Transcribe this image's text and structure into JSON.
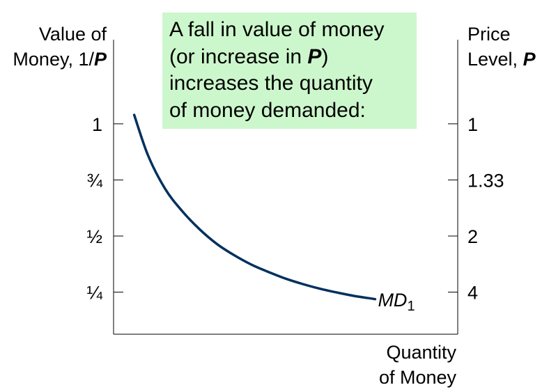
{
  "chart_data": {
    "type": "line",
    "left_axis": {
      "label_line1": "Value of",
      "label_line2_prefix": "Money, 1/",
      "label_line2_var": "P",
      "ticks": [
        {
          "label": "1",
          "value": 1
        },
        {
          "label": "¾",
          "value": 0.75
        },
        {
          "label": "½",
          "value": 0.5
        },
        {
          "label": "¼",
          "value": 0.25
        }
      ],
      "range": [
        0.0625,
        1.375
      ]
    },
    "right_axis": {
      "label_line1": "Price",
      "label_line2_prefix": "Level, ",
      "label_line2_var": "P",
      "ticks": [
        {
          "label": "1",
          "value_of_money": 1
        },
        {
          "label": "1.33",
          "value_of_money": 0.75
        },
        {
          "label": "2",
          "value_of_money": 0.5
        },
        {
          "label": "4",
          "value_of_money": 0.25
        }
      ]
    },
    "x_axis": {
      "label_line1": "Quantity",
      "label_line2": "of Money",
      "range": [
        0,
        10
      ]
    },
    "series": [
      {
        "name_main": "MD",
        "name_sub": "1",
        "color": "#00305e",
        "points": [
          {
            "x": 0.6,
            "y": 1.04
          },
          {
            "x": 1.0,
            "y": 0.86
          },
          {
            "x": 1.5,
            "y": 0.71
          },
          {
            "x": 2.0,
            "y": 0.61
          },
          {
            "x": 2.5,
            "y": 0.53
          },
          {
            "x": 3.0,
            "y": 0.465
          },
          {
            "x": 3.5,
            "y": 0.415
          },
          {
            "x": 4.0,
            "y": 0.373
          },
          {
            "x": 4.5,
            "y": 0.34
          },
          {
            "x": 5.0,
            "y": 0.31
          },
          {
            "x": 5.5,
            "y": 0.286
          },
          {
            "x": 6.0,
            "y": 0.265
          },
          {
            "x": 6.5,
            "y": 0.248
          },
          {
            "x": 7.0,
            "y": 0.233
          },
          {
            "x": 7.6,
            "y": 0.219
          }
        ]
      }
    ],
    "annotation": {
      "background": "#ccf7cc",
      "line1": "A fall in value of money",
      "line2_prefix": "(or increase in ",
      "line2_var": "P",
      "line2_suffix": ")",
      "line3": "increases the quantity",
      "line4": "of money demanded:"
    }
  }
}
